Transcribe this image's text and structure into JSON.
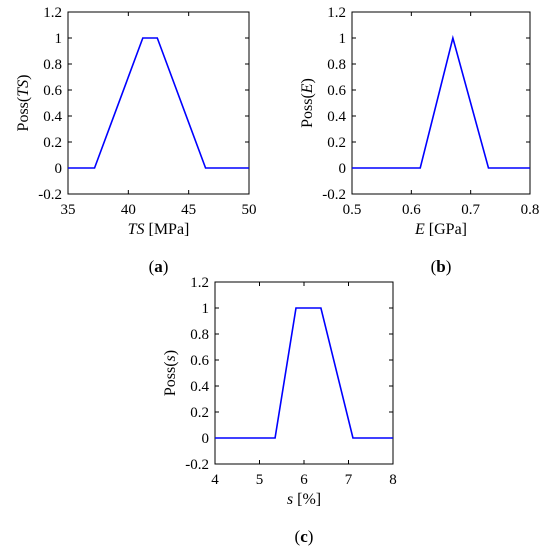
{
  "chart_data": [
    {
      "id": "a",
      "type": "line",
      "panel_label": {
        "prefix": "(",
        "letter": "a",
        "suffix": ")"
      },
      "xlabel": {
        "var": "TS",
        "unit": " [MPa]"
      },
      "ylabel": {
        "pre": "Poss(",
        "var": "TS",
        "post": ")"
      },
      "xlim": [
        35,
        50
      ],
      "ylim": [
        -0.2,
        1.2
      ],
      "xticks": [
        "35",
        "40",
        "45",
        "50"
      ],
      "yticks": [
        "-0.2",
        "0",
        "0.2",
        "0.4",
        "0.6",
        "0.8",
        "1",
        "1.2"
      ],
      "color": "#0000ff",
      "x": [
        35,
        37.2,
        41.2,
        42.4,
        46.4,
        50
      ],
      "y": [
        0,
        0,
        1,
        1,
        0,
        0
      ]
    },
    {
      "id": "b",
      "type": "line",
      "panel_label": {
        "prefix": "(",
        "letter": "b",
        "suffix": ")"
      },
      "xlabel": {
        "var": "E",
        "unit": " [GPa]"
      },
      "ylabel": {
        "pre": "Poss(",
        "var": "E",
        "post": ")"
      },
      "xlim": [
        0.5,
        0.8
      ],
      "ylim": [
        -0.2,
        1.2
      ],
      "xticks": [
        "0.5",
        "0.6",
        "0.7",
        "0.8"
      ],
      "yticks": [
        "-0.2",
        "0",
        "0.2",
        "0.4",
        "0.6",
        "0.8",
        "1",
        "1.2"
      ],
      "color": "#0000ff",
      "x": [
        0.5,
        0.615,
        0.67,
        0.73,
        0.8
      ],
      "y": [
        0,
        0,
        1,
        0,
        0
      ]
    },
    {
      "id": "c",
      "type": "line",
      "panel_label": {
        "prefix": "(",
        "letter": "c",
        "suffix": ")"
      },
      "xlabel": {
        "var": "s",
        "unit": " [%]"
      },
      "ylabel": {
        "pre": "Poss(",
        "var": "s",
        "post": ")"
      },
      "xlim": [
        4,
        8
      ],
      "ylim": [
        -0.2,
        1.2
      ],
      "xticks": [
        "4",
        "5",
        "6",
        "7",
        "8"
      ],
      "yticks": [
        "-0.2",
        "0",
        "0.2",
        "0.4",
        "0.6",
        "0.8",
        "1",
        "1.2"
      ],
      "color": "#0000ff",
      "x": [
        4,
        5.35,
        5.82,
        6.38,
        7.1,
        8
      ],
      "y": [
        0,
        0,
        1,
        1,
        0,
        0
      ]
    }
  ]
}
